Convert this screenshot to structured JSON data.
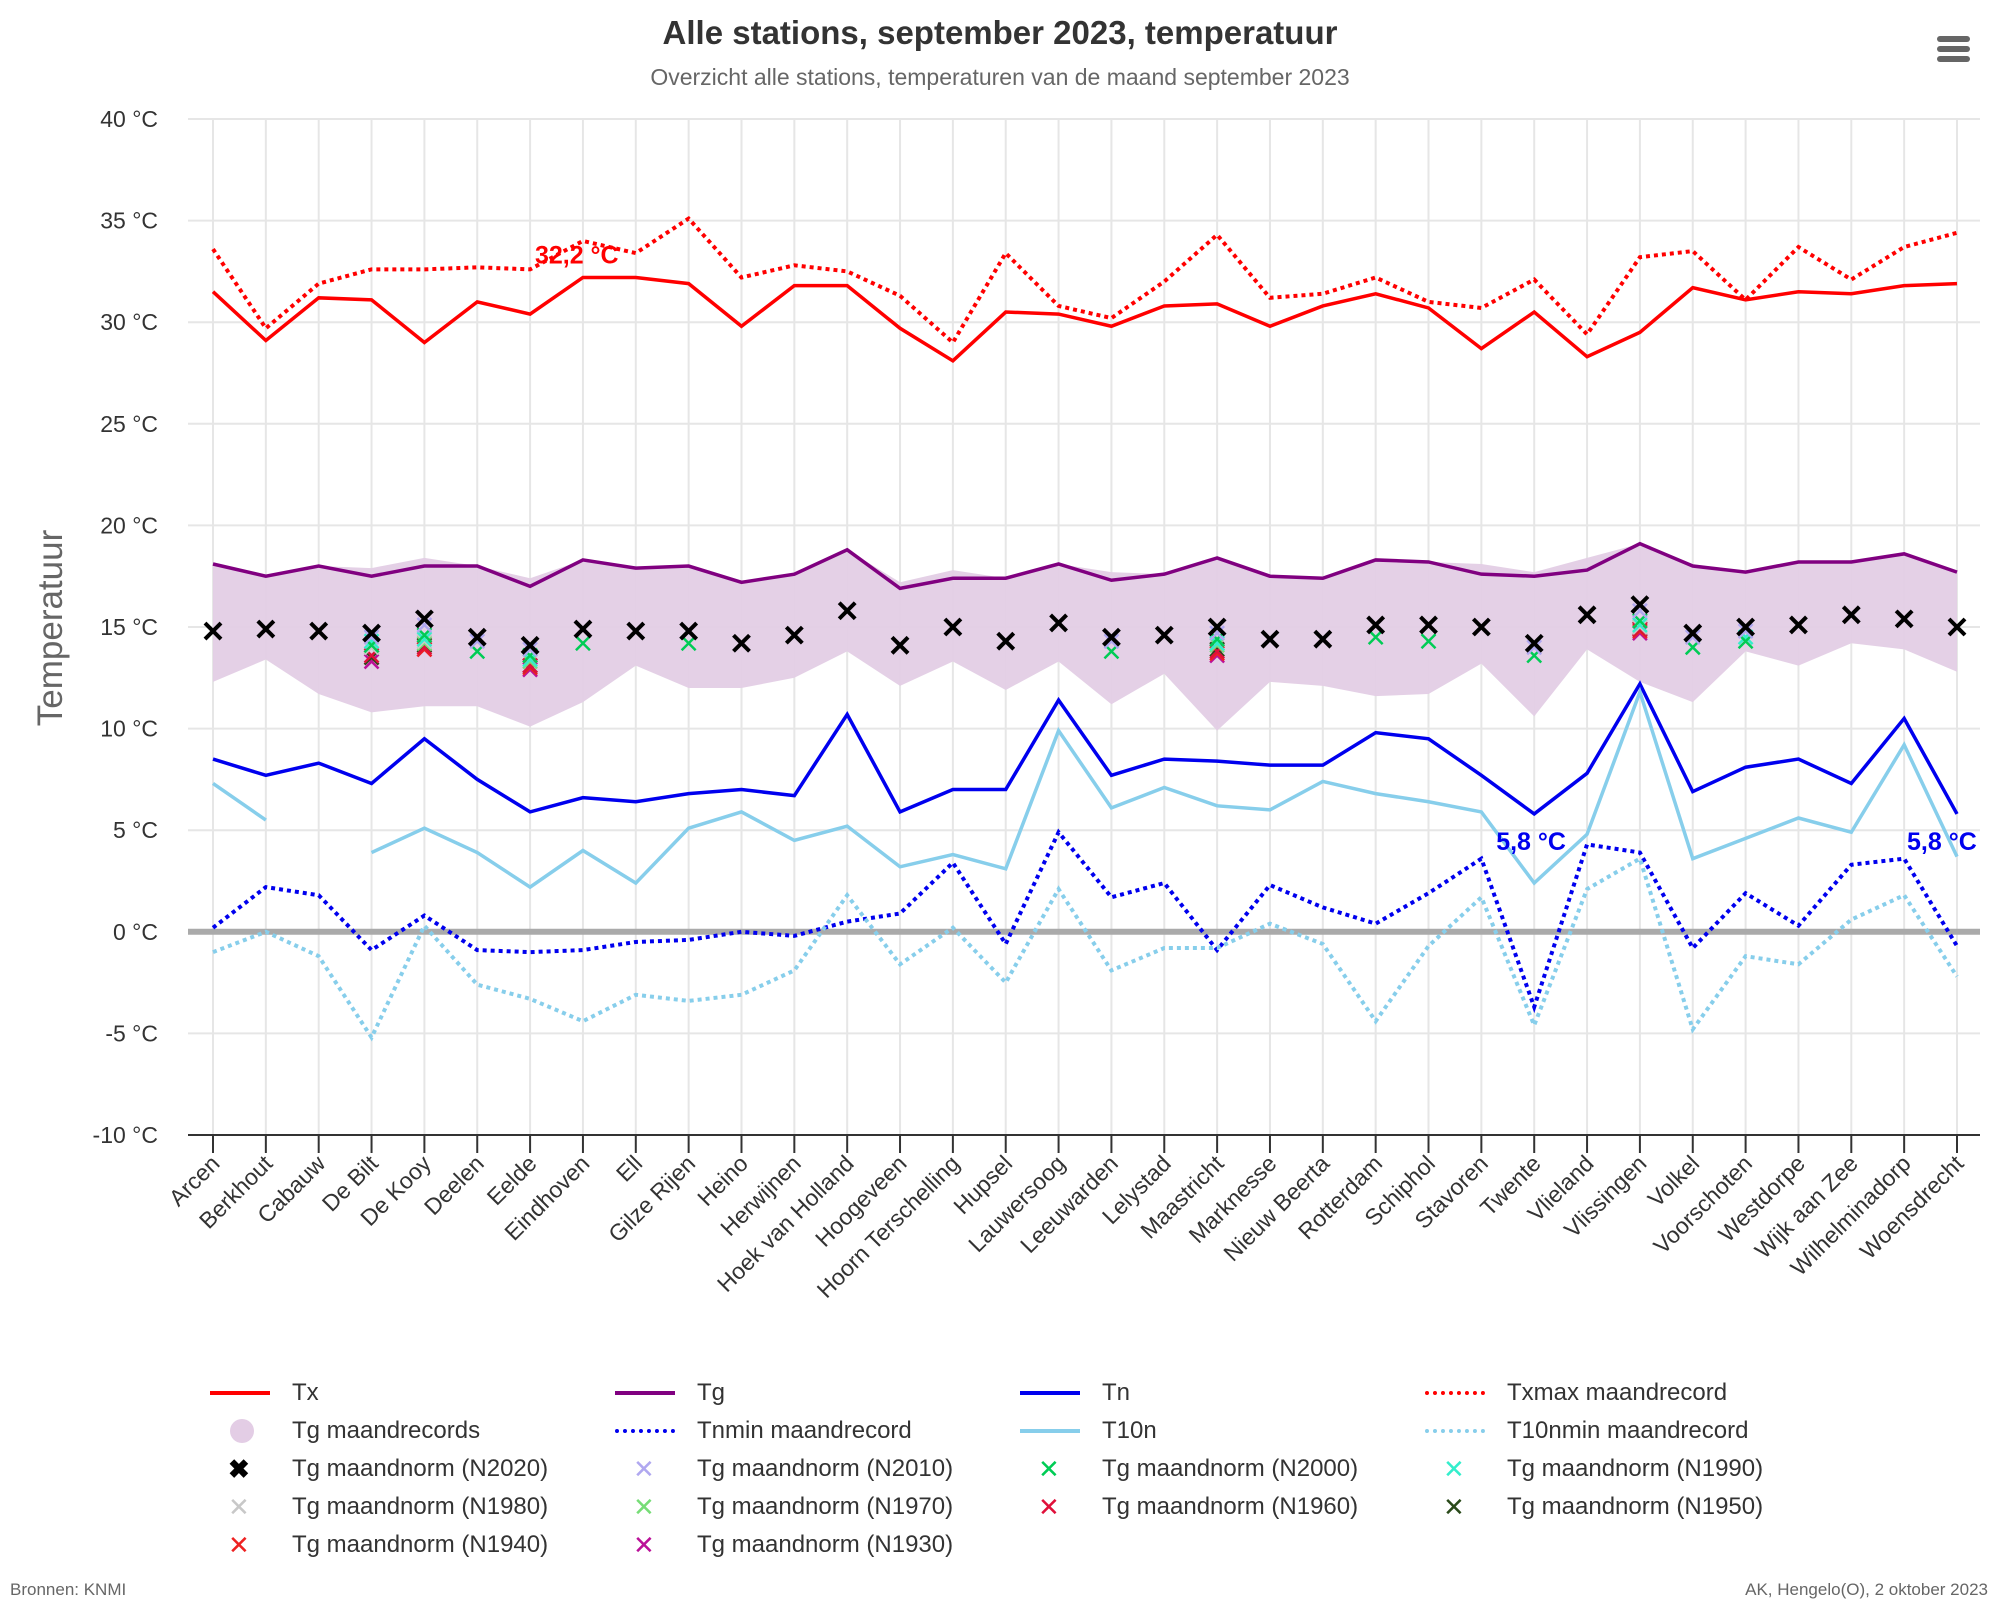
{
  "header": {
    "title": "Alle stations, september 2023, temperatuur",
    "subtitle": "Overzicht alle stations, temperaturen van de maand september 2023",
    "menu_icon": "hamburger-menu-icon"
  },
  "footer": {
    "source": "Bronnen: KNMI",
    "credit": "AK, Hengelo(O), 2 oktober 2023"
  },
  "chart_data": {
    "type": "line",
    "title": "Alle stations, september 2023, temperatuur",
    "subtitle": "Overzicht alle stations, temperaturen van de maand september 2023",
    "xlabel": "",
    "ylabel": "Temperatuur",
    "ylim": [
      -10,
      40
    ],
    "yticks": [
      40,
      35,
      30,
      25,
      20,
      15,
      10,
      5,
      0,
      -5,
      -10
    ],
    "ytick_labels": [
      "40 °C",
      "35 °C",
      "30 °C",
      "25 °C",
      "20 °C",
      "15 °C",
      "10 °C",
      "5 °C",
      "0 °C",
      "-5 °C",
      "-10 °C"
    ],
    "grid": true,
    "legend_position": "bottom",
    "categories": [
      "Arcen",
      "Berkhout",
      "Cabauw",
      "De Bilt",
      "De Kooy",
      "Deelen",
      "Eelde",
      "Eindhoven",
      "Ell",
      "Gilze Rijen",
      "Heino",
      "Herwijnen",
      "Hoek van Holland",
      "Hoogeveen",
      "Hoorn Terschelling",
      "Hupsel",
      "Lauwersoog",
      "Leeuwarden",
      "Lelystad",
      "Maastricht",
      "Marknesse",
      "Nieuw Beerta",
      "Rotterdam",
      "Schiphol",
      "Stavoren",
      "Twente",
      "Vlieland",
      "Vlissingen",
      "Volkel",
      "Voorschoten",
      "Westdorpe",
      "Wijk aan Zee",
      "Wilhelminadorp",
      "Woensdrecht"
    ],
    "band": {
      "name": "Tg maandrecords",
      "color": "#e3cde5",
      "low": [
        12.3,
        13.4,
        11.7,
        10.8,
        11.1,
        11.1,
        10.1,
        11.3,
        13.1,
        12.0,
        12.0,
        12.5,
        13.8,
        12.1,
        13.3,
        11.9,
        13.3,
        11.2,
        12.7,
        9.9,
        12.3,
        12.1,
        11.6,
        11.7,
        13.2,
        10.6,
        13.9,
        12.3,
        11.3,
        13.8,
        13.1,
        14.2,
        13.9,
        12.8
      ],
      "high": [
        18.1,
        17.5,
        18.0,
        17.9,
        18.4,
        18.0,
        17.4,
        18.3,
        17.9,
        18.0,
        17.2,
        17.6,
        18.8,
        17.2,
        17.8,
        17.4,
        18.1,
        17.7,
        17.6,
        18.4,
        17.5,
        17.4,
        18.3,
        18.2,
        18.1,
        17.7,
        18.4,
        19.1,
        18.1,
        17.7,
        18.2,
        18.2,
        18.6,
        17.7
      ]
    },
    "series": [
      {
        "name": "Txmax maandrecord",
        "color": "#ff0000",
        "dash": "dotted",
        "values": [
          33.6,
          29.7,
          31.9,
          32.6,
          32.6,
          32.7,
          32.6,
          34.0,
          33.4,
          35.1,
          32.2,
          32.8,
          32.5,
          31.3,
          29.0,
          33.4,
          30.8,
          30.2,
          32.0,
          34.3,
          31.2,
          31.4,
          32.2,
          31.0,
          30.7,
          32.1,
          29.4,
          33.2,
          33.5,
          31.1,
          33.7,
          32.1,
          33.7,
          34.4
        ]
      },
      {
        "name": "Tx",
        "color": "#ff0000",
        "dash": "solid",
        "values": [
          31.5,
          29.1,
          31.2,
          31.1,
          29.0,
          31.0,
          30.4,
          32.2,
          32.2,
          31.9,
          29.8,
          31.8,
          31.8,
          29.7,
          28.1,
          30.5,
          30.4,
          29.8,
          30.8,
          30.9,
          29.8,
          30.8,
          31.4,
          30.7,
          28.7,
          30.5,
          28.3,
          29.5,
          31.7,
          31.1,
          31.5,
          31.4,
          31.8,
          31.9
        ]
      },
      {
        "name": "Tg",
        "color": "#800080",
        "dash": "solid",
        "values": [
          18.1,
          17.5,
          18.0,
          17.5,
          18.0,
          18.0,
          17.0,
          18.3,
          17.9,
          18.0,
          17.2,
          17.6,
          18.8,
          16.9,
          17.4,
          17.4,
          18.1,
          17.3,
          17.6,
          18.4,
          17.5,
          17.4,
          18.3,
          18.2,
          17.6,
          17.5,
          17.8,
          19.1,
          18.0,
          17.7,
          18.2,
          18.2,
          18.6,
          17.7
        ]
      },
      {
        "name": "Tn",
        "color": "#0000ee",
        "dash": "solid",
        "values": [
          8.5,
          7.7,
          8.3,
          7.3,
          9.5,
          7.5,
          5.9,
          6.6,
          6.4,
          6.8,
          7.0,
          6.7,
          10.7,
          5.9,
          7.0,
          7.0,
          11.4,
          7.7,
          8.5,
          8.4,
          8.2,
          8.2,
          9.8,
          9.5,
          7.7,
          5.8,
          7.8,
          12.2,
          6.9,
          8.1,
          8.5,
          7.3,
          10.5,
          5.8
        ]
      },
      {
        "name": "T10n",
        "color": "#87ceeb",
        "dash": "solid",
        "values": [
          7.3,
          5.5,
          null,
          3.9,
          5.1,
          3.9,
          2.2,
          4.0,
          2.4,
          5.1,
          5.9,
          4.5,
          5.2,
          3.2,
          3.8,
          3.1,
          9.9,
          6.1,
          7.1,
          6.2,
          6.0,
          7.4,
          6.8,
          6.4,
          5.9,
          2.4,
          4.8,
          11.8,
          3.6,
          4.6,
          5.6,
          4.9,
          9.2,
          3.7
        ]
      },
      {
        "name": "Tnmin maandrecord",
        "color": "#0000ee",
        "dash": "dotted",
        "values": [
          0.2,
          2.2,
          1.8,
          -0.9,
          0.8,
          -0.9,
          -1.0,
          -0.9,
          -0.5,
          -0.4,
          0.0,
          -0.2,
          0.5,
          0.9,
          3.4,
          -0.6,
          4.9,
          1.7,
          2.4,
          -0.9,
          2.3,
          1.2,
          0.4,
          1.9,
          3.6,
          -3.7,
          4.3,
          3.9,
          -0.8,
          1.9,
          0.3,
          3.3,
          3.6,
          -0.7
        ]
      },
      {
        "name": "T10nmin maandrecord",
        "color": "#87ceeb",
        "dash": "dotted",
        "values": [
          -1.0,
          0.0,
          -1.2,
          -5.2,
          0.3,
          -2.6,
          -3.3,
          -4.4,
          -3.1,
          -3.4,
          -3.1,
          -1.9,
          1.8,
          -1.6,
          0.2,
          -2.5,
          2.1,
          -1.9,
          -0.8,
          -0.8,
          0.4,
          -0.6,
          -4.4,
          -0.7,
          1.7,
          -4.6,
          2.1,
          3.6,
          -4.8,
          -1.2,
          -1.6,
          0.6,
          1.8,
          -2.2
        ]
      }
    ],
    "norm_markers": [
      {
        "name": "Tg maandnorm (N2020)",
        "color": "#000000",
        "bold": true,
        "values": [
          14.8,
          14.9,
          14.8,
          14.7,
          15.4,
          14.5,
          14.1,
          14.9,
          14.8,
          14.8,
          14.2,
          14.6,
          15.8,
          14.1,
          15.0,
          14.3,
          15.2,
          14.5,
          14.6,
          15.0,
          14.4,
          14.4,
          15.1,
          15.1,
          15.0,
          14.2,
          15.6,
          16.1,
          14.7,
          15.0,
          15.1,
          15.6,
          15.4,
          15.0
        ]
      },
      {
        "name": "Tg maandnorm (N2010)",
        "color": "#b0a8f0",
        "values": [
          null,
          null,
          null,
          14.5,
          15.1,
          14.3,
          13.9,
          null,
          null,
          null,
          null,
          null,
          null,
          null,
          null,
          null,
          null,
          14.3,
          null,
          14.7,
          null,
          null,
          null,
          null,
          null,
          14.0,
          null,
          15.8,
          14.5,
          14.8,
          null,
          null,
          null,
          null
        ]
      },
      {
        "name": "Tg maandnorm (N2000)",
        "color": "#00cc55",
        "values": [
          null,
          null,
          null,
          14.1,
          14.6,
          13.8,
          13.6,
          14.2,
          null,
          14.2,
          null,
          null,
          null,
          null,
          null,
          null,
          null,
          13.8,
          null,
          14.4,
          null,
          null,
          14.5,
          14.3,
          null,
          13.6,
          null,
          15.3,
          14.0,
          14.3,
          null,
          null,
          null,
          null
        ]
      },
      {
        "name": "Tg maandnorm (N1990)",
        "color": "#33eecc",
        "values": [
          null,
          null,
          null,
          14.3,
          14.4,
          null,
          13.4,
          null,
          null,
          null,
          null,
          null,
          null,
          null,
          null,
          null,
          null,
          null,
          null,
          14.2,
          null,
          null,
          null,
          null,
          null,
          null,
          null,
          15.1,
          null,
          14.5,
          null,
          null,
          null,
          null
        ]
      },
      {
        "name": "Tg maandnorm (N1980)",
        "color": "#c8c8c8",
        "values": [
          null,
          null,
          null,
          14.0,
          14.3,
          null,
          13.4,
          null,
          null,
          null,
          null,
          null,
          null,
          null,
          null,
          null,
          null,
          null,
          null,
          14.2,
          null,
          null,
          null,
          null,
          null,
          null,
          null,
          15.0,
          null,
          null,
          null,
          null,
          null,
          null
        ]
      },
      {
        "name": "Tg maandnorm (N1970)",
        "color": "#77dd77",
        "values": [
          null,
          null,
          null,
          14.0,
          14.2,
          null,
          13.3,
          null,
          null,
          null,
          null,
          null,
          null,
          null,
          null,
          null,
          null,
          null,
          null,
          14.1,
          null,
          null,
          null,
          null,
          null,
          null,
          null,
          15.0,
          null,
          null,
          null,
          null,
          null,
          null
        ]
      },
      {
        "name": "Tg maandnorm (N1960)",
        "color": "#e0103a",
        "values": [
          null,
          null,
          null,
          13.6,
          14.0,
          null,
          13.1,
          null,
          null,
          null,
          null,
          null,
          null,
          null,
          null,
          null,
          null,
          null,
          null,
          13.8,
          null,
          null,
          null,
          null,
          null,
          null,
          null,
          14.9,
          null,
          null,
          null,
          null,
          null,
          null
        ]
      },
      {
        "name": "Tg maandnorm (N1950)",
        "color": "#2a4a1a",
        "values": [
          null,
          null,
          null,
          13.5,
          14.1,
          null,
          13.1,
          null,
          null,
          null,
          null,
          null,
          null,
          null,
          null,
          null,
          null,
          null,
          null,
          13.9,
          null,
          null,
          null,
          null,
          null,
          null,
          null,
          14.9,
          null,
          null,
          null,
          null,
          null,
          null
        ]
      },
      {
        "name": "Tg maandnorm (N1940)",
        "color": "#ee2222",
        "values": [
          null,
          null,
          null,
          13.5,
          13.9,
          null,
          13.0,
          null,
          null,
          null,
          null,
          null,
          null,
          null,
          null,
          null,
          null,
          null,
          null,
          13.7,
          null,
          null,
          null,
          null,
          null,
          null,
          null,
          14.8,
          null,
          null,
          null,
          null,
          null,
          null
        ]
      },
      {
        "name": "Tg maandnorm (N1930)",
        "color": "#bb1199",
        "values": [
          null,
          null,
          null,
          13.3,
          13.9,
          null,
          12.9,
          null,
          null,
          null,
          null,
          null,
          null,
          null,
          null,
          null,
          null,
          null,
          null,
          13.6,
          null,
          null,
          null,
          null,
          null,
          null,
          null,
          14.7,
          null,
          null,
          null,
          null,
          null,
          null
        ]
      }
    ],
    "annotations": [
      {
        "text": "32,2 °C",
        "station": "Eindhoven",
        "series": "Tx",
        "value": 32.2,
        "color": "#ff0000"
      },
      {
        "text": "5,8 °C",
        "station": "Twente",
        "series": "Tn",
        "value": 5.8,
        "color": "#0000ee"
      },
      {
        "text": "5,8 °C",
        "station": "Woensdrecht",
        "series": "Tn",
        "value": 5.8,
        "color": "#0000ee"
      }
    ],
    "zero_line": {
      "value": 0,
      "color": "#aaaaaa"
    }
  },
  "legend": {
    "items": [
      {
        "label": "Tx",
        "kind": "line",
        "color": "#ff0000"
      },
      {
        "label": "Tg",
        "kind": "line",
        "color": "#800080"
      },
      {
        "label": "Tn",
        "kind": "line",
        "color": "#0000ee"
      },
      {
        "label": "Txmax maandrecord",
        "kind": "dotted",
        "color": "#ff0000"
      },
      {
        "label": "Tg maandrecords",
        "kind": "dot",
        "color": "#e3cde5"
      },
      {
        "label": "Tnmin maandrecord",
        "kind": "dotted",
        "color": "#0000ee"
      },
      {
        "label": "T10n",
        "kind": "line",
        "color": "#87ceeb"
      },
      {
        "label": "T10nmin maandrecord",
        "kind": "dotted",
        "color": "#87ceeb"
      },
      {
        "label": "Tg maandnorm (N2020)",
        "kind": "xbold",
        "color": "#000000"
      },
      {
        "label": "Tg maandnorm (N2010)",
        "kind": "x",
        "color": "#b0a8f0"
      },
      {
        "label": "Tg maandnorm (N2000)",
        "kind": "x",
        "color": "#00cc55"
      },
      {
        "label": "Tg maandnorm (N1990)",
        "kind": "x",
        "color": "#33eecc"
      },
      {
        "label": "Tg maandnorm (N1980)",
        "kind": "x",
        "color": "#c8c8c8"
      },
      {
        "label": "Tg maandnorm (N1970)",
        "kind": "x",
        "color": "#77dd77"
      },
      {
        "label": "Tg maandnorm (N1960)",
        "kind": "x",
        "color": "#e0103a"
      },
      {
        "label": "Tg maandnorm (N1950)",
        "kind": "x",
        "color": "#2a4a1a"
      },
      {
        "label": "Tg maandnorm (N1940)",
        "kind": "x",
        "color": "#ee2222"
      },
      {
        "label": "Tg maandnorm (N1930)",
        "kind": "x",
        "color": "#bb1199"
      }
    ]
  }
}
